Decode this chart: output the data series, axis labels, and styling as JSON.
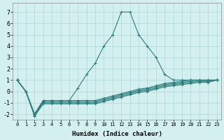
{
  "xlabel": "Humidex (Indice chaleur)",
  "background_color": "#d4efef",
  "grid_color": "#aed8d8",
  "line_color": "#2d7d7d",
  "xlim": [
    -0.5,
    23.5
  ],
  "ylim": [
    -2.5,
    7.8
  ],
  "xticks": [
    0,
    1,
    2,
    3,
    4,
    5,
    6,
    7,
    8,
    9,
    10,
    11,
    12,
    13,
    14,
    15,
    16,
    17,
    18,
    19,
    20,
    21,
    22,
    23
  ],
  "yticks": [
    -2,
    -1,
    0,
    1,
    2,
    3,
    4,
    5,
    6,
    7
  ],
  "lines": [
    [
      1.0,
      0.0,
      -2.0,
      -0.8,
      -0.8,
      -0.8,
      -0.8,
      0.3,
      1.5,
      2.5,
      4.0,
      5.0,
      7.0,
      7.0,
      5.0,
      4.0,
      3.0,
      1.5,
      1.0,
      1.0,
      1.0,
      1.0,
      1.0,
      1.0
    ],
    [
      1.0,
      0.0,
      -2.0,
      -0.8,
      -0.8,
      -0.8,
      -0.8,
      -0.8,
      -0.8,
      -0.8,
      -0.6,
      -0.4,
      -0.2,
      0.0,
      0.2,
      0.3,
      0.5,
      0.7,
      0.8,
      0.9,
      1.0,
      1.0,
      1.0,
      1.0
    ],
    [
      1.0,
      0.0,
      -2.0,
      -0.9,
      -0.9,
      -0.9,
      -0.9,
      -0.9,
      -0.9,
      -0.9,
      -0.7,
      -0.5,
      -0.3,
      -0.1,
      0.1,
      0.2,
      0.4,
      0.6,
      0.7,
      0.8,
      0.9,
      0.9,
      0.9,
      1.0
    ],
    [
      1.0,
      0.0,
      -2.1,
      -1.0,
      -1.0,
      -1.0,
      -1.0,
      -1.0,
      -1.0,
      -1.0,
      -0.8,
      -0.6,
      -0.4,
      -0.2,
      0.0,
      0.1,
      0.3,
      0.5,
      0.6,
      0.7,
      0.8,
      0.9,
      0.9,
      1.0
    ],
    [
      1.0,
      0.0,
      -2.2,
      -1.1,
      -1.1,
      -1.1,
      -1.1,
      -1.1,
      -1.1,
      -1.1,
      -0.9,
      -0.7,
      -0.5,
      -0.3,
      -0.1,
      0.0,
      0.2,
      0.4,
      0.5,
      0.6,
      0.7,
      0.8,
      0.8,
      1.0
    ]
  ]
}
